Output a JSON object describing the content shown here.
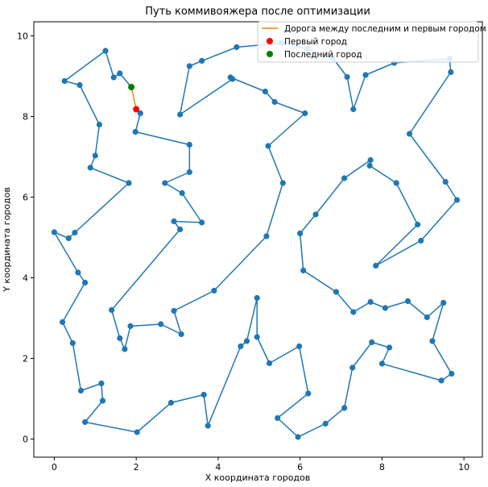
{
  "chart_data": {
    "type": "line",
    "title": "Путь коммивояжера после оптимизации",
    "xlabel": "X координата городов",
    "ylabel": "Y координата городов",
    "xlim": [
      -0.5,
      10.45
    ],
    "ylim": [
      -0.45,
      10.35
    ],
    "xticks": [
      0,
      2,
      4,
      6,
      8,
      10
    ],
    "yticks": [
      0,
      2,
      4,
      6,
      8,
      10
    ],
    "grid": false,
    "legend_position": "top-right",
    "legend": [
      "Дорога между последним и первым городом",
      "Первый город",
      "Последний город"
    ],
    "colors": {
      "route": "#1f77b4",
      "closing_road": "#ff7f0e",
      "first_city": "#ff0000",
      "last_city": "#008000"
    },
    "route": [
      [
        2.0,
        8.18
      ],
      [
        2.1,
        8.08
      ],
      [
        1.98,
        7.62
      ],
      [
        3.3,
        7.3
      ],
      [
        3.3,
        6.62
      ],
      [
        2.7,
        6.35
      ],
      [
        3.12,
        6.1
      ],
      [
        3.6,
        5.37
      ],
      [
        2.92,
        5.4
      ],
      [
        3.07,
        5.2
      ],
      [
        1.4,
        3.2
      ],
      [
        1.6,
        2.5
      ],
      [
        1.72,
        2.23
      ],
      [
        1.86,
        2.8
      ],
      [
        2.6,
        2.85
      ],
      [
        3.1,
        2.6
      ],
      [
        2.92,
        3.18
      ],
      [
        3.9,
        3.68
      ],
      [
        5.18,
        5.03
      ],
      [
        5.58,
        6.35
      ],
      [
        5.22,
        7.27
      ],
      [
        6.12,
        8.08
      ],
      [
        5.38,
        8.36
      ],
      [
        5.15,
        8.62
      ],
      [
        4.3,
        8.97
      ],
      [
        4.35,
        8.93
      ],
      [
        3.07,
        8.05
      ],
      [
        3.3,
        9.25
      ],
      [
        3.6,
        9.38
      ],
      [
        4.45,
        9.72
      ],
      [
        5.55,
        9.82
      ],
      [
        6.18,
        9.68
      ],
      [
        6.8,
        9.45
      ],
      [
        7.15,
        8.98
      ],
      [
        7.3,
        8.18
      ],
      [
        7.6,
        9.03
      ],
      [
        8.3,
        9.33
      ],
      [
        9.65,
        9.43
      ],
      [
        9.68,
        9.1
      ],
      [
        8.67,
        7.57
      ],
      [
        9.55,
        6.38
      ],
      [
        9.83,
        5.93
      ],
      [
        8.95,
        4.92
      ],
      [
        7.85,
        4.3
      ],
      [
        8.87,
        5.32
      ],
      [
        8.35,
        6.35
      ],
      [
        7.7,
        6.78
      ],
      [
        7.72,
        6.92
      ],
      [
        7.08,
        6.47
      ],
      [
        6.38,
        5.57
      ],
      [
        6.0,
        5.1
      ],
      [
        6.08,
        4.18
      ],
      [
        6.88,
        3.65
      ],
      [
        7.3,
        3.15
      ],
      [
        7.72,
        3.4
      ],
      [
        8.08,
        3.25
      ],
      [
        8.63,
        3.42
      ],
      [
        9.1,
        3.02
      ],
      [
        9.5,
        3.38
      ],
      [
        9.23,
        2.43
      ],
      [
        9.7,
        1.62
      ],
      [
        9.45,
        1.45
      ],
      [
        8.0,
        1.87
      ],
      [
        8.18,
        2.27
      ],
      [
        7.75,
        2.4
      ],
      [
        7.28,
        1.77
      ],
      [
        7.08,
        0.77
      ],
      [
        6.62,
        0.38
      ],
      [
        5.95,
        0.05
      ],
      [
        5.45,
        0.52
      ],
      [
        6.2,
        1.13
      ],
      [
        5.98,
        2.3
      ],
      [
        5.25,
        1.88
      ],
      [
        4.95,
        2.53
      ],
      [
        4.95,
        3.5
      ],
      [
        4.7,
        2.43
      ],
      [
        4.55,
        2.3
      ],
      [
        3.75,
        0.33
      ],
      [
        3.65,
        1.1
      ],
      [
        2.85,
        0.9
      ],
      [
        2.02,
        0.17
      ],
      [
        0.75,
        0.42
      ],
      [
        1.18,
        0.95
      ],
      [
        1.15,
        1.38
      ],
      [
        0.65,
        1.2
      ],
      [
        0.45,
        2.38
      ],
      [
        0.2,
        2.9
      ],
      [
        0.75,
        3.88
      ],
      [
        0.58,
        4.13
      ],
      [
        0.0,
        5.13
      ],
      [
        0.35,
        4.98
      ],
      [
        0.5,
        5.12
      ],
      [
        1.82,
        6.35
      ],
      [
        0.88,
        6.73
      ],
      [
        1.0,
        7.03
      ],
      [
        1.1,
        7.8
      ],
      [
        0.62,
        8.78
      ],
      [
        0.25,
        8.88
      ],
      [
        1.25,
        9.63
      ],
      [
        1.45,
        8.97
      ],
      [
        1.6,
        9.07
      ],
      [
        1.88,
        8.73
      ]
    ],
    "closing_road": [
      [
        1.88,
        8.73
      ],
      [
        2.0,
        8.18
      ]
    ],
    "first_city": [
      2.0,
      8.18
    ],
    "last_city": [
      1.88,
      8.73
    ]
  }
}
